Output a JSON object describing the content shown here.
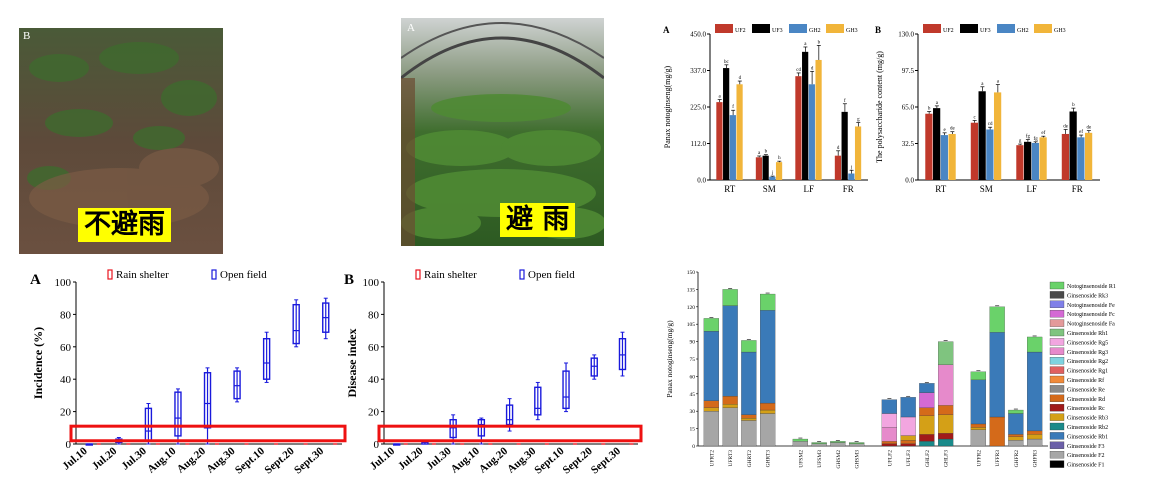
{
  "photos": [
    {
      "letter": "B",
      "caption": "不避雨"
    },
    {
      "letter": "A",
      "caption": "避 雨"
    }
  ],
  "colors": {
    "UF2": "#c0392b",
    "UF3": "#000000",
    "GH2": "#4a86c4",
    "GH3": "#f1b53a",
    "rain": "#e8141e",
    "open": "#1a1adc",
    "components": [
      "#6ad26a",
      "#4b4b4b",
      "#8080e8",
      "#d46ad4",
      "#e39a9a",
      "#7fc47f",
      "#f2a6e0",
      "#e68acb",
      "#7ed3e0",
      "#e06060",
      "#f08a3a",
      "#8a8a8a",
      "#d46a1a",
      "#a11a1a",
      "#d4a017",
      "#1a8a8a",
      "#3a7ab8",
      "#6b5fa8",
      "#a6a6a6",
      "#000000"
    ]
  },
  "chart_data": [
    {
      "type": "bar",
      "letter": "A",
      "categories": [
        "RT",
        "SM",
        "LF",
        "FR"
      ],
      "legend": [
        "UF2",
        "UF3",
        "GH2",
        "GH3"
      ],
      "ylabel": "Panax notoginseng(mg/g)",
      "ylim": [
        0,
        450
      ],
      "yticks": [
        "0.0",
        "112.0",
        "225.0",
        "337.0",
        "450.0"
      ],
      "series": [
        {
          "name": "UF2",
          "values": [
            240,
            70,
            320,
            75
          ],
          "err": [
            8,
            4,
            10,
            15
          ],
          "labels": [
            "a",
            "a",
            "cd",
            "d"
          ]
        },
        {
          "name": "UF3",
          "values": [
            345,
            75,
            395,
            210
          ],
          "err": [
            10,
            3,
            15,
            25
          ],
          "labels": [
            "bc",
            "b",
            "a",
            "f"
          ]
        },
        {
          "name": "GH2",
          "values": [
            200,
            10,
            295,
            20
          ],
          "err": [
            15,
            2,
            40,
            10
          ],
          "labels": [
            "f",
            "j",
            "d",
            "j"
          ]
        },
        {
          "name": "GH3",
          "values": [
            295,
            55,
            370,
            165
          ],
          "err": [
            10,
            3,
            45,
            12
          ],
          "labels": [
            "d",
            "h",
            "b",
            "g"
          ]
        }
      ]
    },
    {
      "type": "bar",
      "letter": "B",
      "categories": [
        "RT",
        "SM",
        "LF",
        "FR"
      ],
      "legend": [
        "UF2",
        "UF3",
        "GH2",
        "GH3"
      ],
      "ylabel": "The polysaccharide content (mg/g)",
      "ylim": [
        0,
        130
      ],
      "yticks": [
        "0.0",
        "32.5",
        "65.0",
        "97.5",
        "130.0"
      ],
      "series": [
        {
          "name": "UF2",
          "values": [
            59,
            51,
            31,
            41
          ],
          "err": [
            2,
            2,
            1,
            4
          ],
          "labels": [
            "b",
            "c",
            "g",
            "de"
          ]
        },
        {
          "name": "UF3",
          "values": [
            64,
            79,
            34,
            61
          ],
          "err": [
            2,
            4,
            2,
            3
          ],
          "labels": [
            "a",
            "a",
            "fg",
            "b"
          ]
        },
        {
          "name": "GH2",
          "values": [
            40,
            45,
            33,
            38
          ],
          "err": [
            2,
            2,
            1,
            2
          ],
          "labels": [
            "e",
            "cd",
            "fg",
            "ef"
          ]
        },
        {
          "name": "GH3",
          "values": [
            41,
            78,
            38,
            42
          ],
          "err": [
            2,
            7,
            1,
            2
          ],
          "labels": [
            "de",
            "a",
            "ef",
            "de"
          ]
        }
      ]
    },
    {
      "type": "box",
      "letter": "A",
      "legend": [
        "Rain shelter",
        "Open field"
      ],
      "ylabel": "Incidence (%)",
      "categories": [
        "Jul.10",
        "Jul.20",
        "Jul.30",
        "Aug.10",
        "Aug.20",
        "Aug.30",
        "Sept.10",
        "Sept.20",
        "Sept.30"
      ],
      "ylim": [
        0,
        100
      ],
      "yticks": [
        "0",
        "20",
        "40",
        "60",
        "80",
        "100"
      ],
      "open": [
        [
          0,
          0,
          0,
          0,
          0
        ],
        [
          0,
          1,
          2,
          3,
          4
        ],
        [
          0,
          2,
          8,
          22,
          25
        ],
        [
          0,
          5,
          16,
          32,
          34
        ],
        [
          0,
          10,
          25,
          44,
          47
        ],
        [
          26,
          28,
          36,
          45,
          47
        ],
        [
          38,
          40,
          50,
          65,
          69
        ],
        [
          60,
          62,
          70,
          86,
          89
        ],
        [
          65,
          69,
          78,
          87,
          90
        ]
      ],
      "rain": [
        0,
        0,
        0,
        0,
        0,
        0,
        0,
        0,
        0
      ]
    },
    {
      "type": "box",
      "letter": "B",
      "legend": [
        "Rain shelter",
        "Open field"
      ],
      "ylabel": "Disease index",
      "categories": [
        "Jul.10",
        "Jul.20",
        "Jul.30",
        "Aug.10",
        "Aug.20",
        "Aug.30",
        "Sept.10",
        "Sept.20",
        "Sept.30"
      ],
      "ylim": [
        0,
        100
      ],
      "yticks": [
        "0",
        "20",
        "40",
        "60",
        "80",
        "100"
      ],
      "open": [
        [
          0,
          0,
          0,
          0,
          0
        ],
        [
          0,
          0,
          1,
          2,
          2
        ],
        [
          0,
          4,
          10,
          15,
          18
        ],
        [
          0,
          5,
          12,
          15,
          16
        ],
        [
          8,
          12,
          15,
          24,
          28
        ],
        [
          15,
          18,
          22,
          35,
          38
        ],
        [
          20,
          22,
          29,
          45,
          50
        ],
        [
          40,
          42,
          48,
          53,
          55
        ],
        [
          42,
          46,
          55,
          65,
          69
        ]
      ],
      "rain": [
        0,
        0,
        0,
        0,
        0,
        0,
        0,
        0,
        0
      ]
    },
    {
      "type": "stacked-bar",
      "ylabel": "Panax notoginseng(mg/g)",
      "ylim": [
        0,
        150
      ],
      "yticks": [
        "0",
        "15",
        "30",
        "45",
        "60",
        "75",
        "90",
        "105",
        "120",
        "135",
        "150"
      ],
      "categories": [
        "UFRT2",
        "UFRT3",
        "GHRT2",
        "GHRT3",
        "UFSM2",
        "UFSM3",
        "GHSM2",
        "GHSM3",
        "UFLF2",
        "UFLF3",
        "GHLF2",
        "GHLF3",
        "UFFR2",
        "UFFR3",
        "GHFR2",
        "GHFR3"
      ],
      "groups": [
        [
          0,
          4
        ],
        [
          4,
          8
        ],
        [
          8,
          12
        ],
        [
          12,
          16
        ]
      ],
      "legend": [
        "Notoginsenoside R1",
        "Ginsenoside Rk3",
        "Notoginsenoside Fe",
        "Notoginsenoside Fc",
        "Notoginsenoside Fa",
        "Ginsenoside Rh1",
        "Ginsenoside Rg5",
        "Ginsenoside Rg3",
        "Ginsenoside Rg2",
        "Ginsenoside Rg1",
        "Ginsenoside Rf",
        "Ginsenoside Re",
        "Ginsenoside Rd",
        "Ginsenoside Rc",
        "Ginsenoside Rb3",
        "Ginsenoside Rb2",
        "Ginsenoside Rb1",
        "Ginsenoside F3",
        "Ginsenoside F2",
        "Ginsenoside F1"
      ],
      "stacks": [
        [
          {
            "c": 18,
            "v": 30
          },
          {
            "c": 14,
            "v": 3
          },
          {
            "c": 12,
            "v": 6
          },
          {
            "c": 16,
            "v": 60
          },
          {
            "c": 0,
            "v": 11
          }
        ],
        [
          {
            "c": 18,
            "v": 33
          },
          {
            "c": 14,
            "v": 3
          },
          {
            "c": 12,
            "v": 7
          },
          {
            "c": 16,
            "v": 78
          },
          {
            "c": 0,
            "v": 14
          }
        ],
        [
          {
            "c": 18,
            "v": 22
          },
          {
            "c": 14,
            "v": 2
          },
          {
            "c": 12,
            "v": 3
          },
          {
            "c": 16,
            "v": 54
          },
          {
            "c": 0,
            "v": 10
          }
        ],
        [
          {
            "c": 18,
            "v": 28
          },
          {
            "c": 14,
            "v": 3
          },
          {
            "c": 12,
            "v": 6
          },
          {
            "c": 16,
            "v": 80
          },
          {
            "c": 0,
            "v": 14
          }
        ],
        [
          {
            "c": 18,
            "v": 4
          },
          {
            "c": 0,
            "v": 2
          }
        ],
        [
          {
            "c": 18,
            "v": 2
          },
          {
            "c": 0,
            "v": 1
          }
        ],
        [
          {
            "c": 18,
            "v": 3
          },
          {
            "c": 0,
            "v": 1
          }
        ],
        [
          {
            "c": 18,
            "v": 2
          },
          {
            "c": 0,
            "v": 1
          }
        ],
        [
          {
            "c": 13,
            "v": 2
          },
          {
            "c": 12,
            "v": 2
          },
          {
            "c": 7,
            "v": 12
          },
          {
            "c": 6,
            "v": 12
          },
          {
            "c": 16,
            "v": 12
          }
        ],
        [
          {
            "c": 13,
            "v": 2
          },
          {
            "c": 12,
            "v": 3
          },
          {
            "c": 14,
            "v": 4
          },
          {
            "c": 6,
            "v": 16
          },
          {
            "c": 16,
            "v": 17
          }
        ],
        [
          {
            "c": 15,
            "v": 4
          },
          {
            "c": 13,
            "v": 6
          },
          {
            "c": 14,
            "v": 16
          },
          {
            "c": 12,
            "v": 7
          },
          {
            "c": 3,
            "v": 13
          },
          {
            "c": 16,
            "v": 8
          }
        ],
        [
          {
            "c": 15,
            "v": 6
          },
          {
            "c": 13,
            "v": 5
          },
          {
            "c": 14,
            "v": 16
          },
          {
            "c": 12,
            "v": 8
          },
          {
            "c": 7,
            "v": 35
          },
          {
            "c": 5,
            "v": 20
          }
        ],
        [
          {
            "c": 18,
            "v": 14
          },
          {
            "c": 14,
            "v": 2
          },
          {
            "c": 12,
            "v": 3
          },
          {
            "c": 16,
            "v": 38
          },
          {
            "c": 0,
            "v": 7
          }
        ],
        [
          {
            "c": 12,
            "v": 25
          },
          {
            "c": 16,
            "v": 73
          },
          {
            "c": 0,
            "v": 22
          }
        ],
        [
          {
            "c": 18,
            "v": 5
          },
          {
            "c": 14,
            "v": 3
          },
          {
            "c": 12,
            "v": 2
          },
          {
            "c": 16,
            "v": 18
          },
          {
            "c": 0,
            "v": 3
          }
        ],
        [
          {
            "c": 18,
            "v": 6
          },
          {
            "c": 14,
            "v": 4
          },
          {
            "c": 12,
            "v": 3
          },
          {
            "c": 16,
            "v": 68
          },
          {
            "c": 0,
            "v": 13
          }
        ]
      ]
    }
  ]
}
